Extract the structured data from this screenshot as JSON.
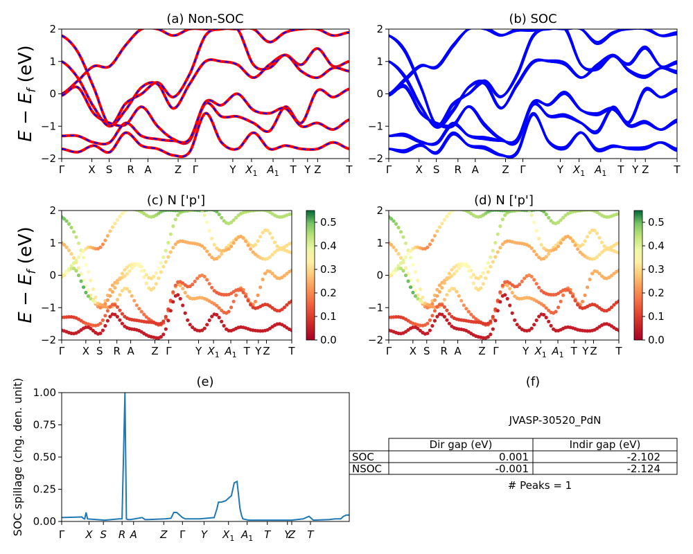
{
  "figure_id": "JVASP-30520_PdN",
  "axis_text": {
    "energy_ylabel_main": "E − E",
    "energy_ylabel_sub": "f",
    "energy_ylabel_unit": " (eV)",
    "spillage_ylabel": "SOC spillage (chg. den. unit)"
  },
  "kpath_labels": [
    {
      "text": "Γ",
      "sub": ""
    },
    {
      "text": "X",
      "sub": ""
    },
    {
      "text": "S",
      "sub": ""
    },
    {
      "text": "R",
      "sub": ""
    },
    {
      "text": "A",
      "sub": ""
    },
    {
      "text": "Z",
      "sub": ""
    },
    {
      "text": "Γ",
      "sub": ""
    },
    {
      "text": "Y",
      "sub": ""
    },
    {
      "text": "X",
      "sub": "1"
    },
    {
      "text": "A",
      "sub": "1"
    },
    {
      "text": "T",
      "sub": ""
    },
    {
      "text": "Y",
      "sub": ""
    },
    {
      "text": "Z",
      "sub": ""
    },
    {
      "text": "T",
      "sub": ""
    }
  ],
  "kpath_positions": [
    0,
    0.105,
    0.165,
    0.24,
    0.3,
    0.405,
    0.465,
    0.595,
    0.66,
    0.735,
    0.805,
    0.855,
    0.89,
    1.0
  ],
  "colors": {
    "nonsoc_band": "#ff0000",
    "nonsoc_dash": "#0000ff",
    "soc_band": "#0000ff",
    "spillage_line": "#1f77b4"
  },
  "chart_data": [
    {
      "panel": "a",
      "type": "line",
      "title": "(a) Non-SOC",
      "ylim": [
        -2,
        2
      ],
      "yticks": [
        -2,
        -1,
        0,
        1,
        2
      ],
      "bands": [
        [
          1.8,
          1.3,
          0.2,
          -0.95,
          -0.3,
          0.0,
          0.35,
          -0.1,
          0.6,
          1.8,
          2.0,
          2.0,
          2.0,
          1.6,
          1.9,
          2.0,
          2.0,
          1.8,
          1.9
        ],
        [
          1.0,
          0.5,
          -0.4,
          -1.0,
          -0.5,
          0.2,
          0.3,
          -0.45,
          0.3,
          1.0,
          1.0,
          0.9,
          0.5,
          0.9,
          1.2,
          0.9,
          1.4,
          0.85,
          1.0
        ],
        [
          0.0,
          0.4,
          0.85,
          0.85,
          1.5,
          2.0,
          2.0,
          1.8,
          2.0,
          2.0,
          2.0,
          2.0,
          0.9,
          0.8,
          1.2,
          0.7,
          0.5,
          0.8,
          0.7
        ],
        [
          -0.05,
          0.2,
          -0.6,
          -0.9,
          -0.95,
          -0.4,
          -1.0,
          -1.4,
          -1.45,
          -0.3,
          -0.7,
          -0.7,
          -0.9,
          -1.15,
          -0.4,
          -0.9,
          0.1,
          -0.1,
          0.15
        ],
        [
          -1.3,
          -1.3,
          -1.5,
          -1.5,
          -0.9,
          -1.3,
          -1.4,
          -1.45,
          -1.4,
          -0.25,
          -0.35,
          0.0,
          -0.5,
          -0.6,
          -0.45,
          -1.0,
          -0.9,
          -1.1,
          -0.8
        ],
        [
          -1.7,
          -1.8,
          -1.6,
          -1.8,
          -1.2,
          -1.6,
          -1.7,
          -1.9,
          -1.8,
          -0.6,
          -1.5,
          -1.7,
          -1.2,
          -1.7,
          -1.6,
          -1.7,
          -1.7,
          -1.5,
          -1.7
        ]
      ]
    },
    {
      "panel": "b",
      "type": "line",
      "title": "(b) SOC",
      "ylim": [
        -2,
        2
      ],
      "yticks": [
        -2,
        -1,
        0,
        1,
        2
      ],
      "bands": [
        [
          1.8,
          1.3,
          0.2,
          -0.95,
          -0.3,
          0.0,
          0.35,
          -0.1,
          0.6,
          1.8,
          2.0,
          2.0,
          2.0,
          1.6,
          1.9,
          2.0,
          2.0,
          1.8,
          1.9
        ],
        [
          1.0,
          0.5,
          -0.4,
          -1.0,
          -0.5,
          0.2,
          0.3,
          -0.45,
          0.3,
          1.0,
          1.0,
          0.9,
          0.5,
          0.9,
          1.2,
          0.9,
          1.4,
          0.85,
          1.0
        ],
        [
          0.0,
          0.4,
          0.85,
          0.85,
          1.5,
          2.0,
          2.0,
          1.8,
          2.0,
          2.0,
          2.0,
          2.0,
          0.9,
          0.8,
          1.2,
          0.7,
          0.5,
          0.8,
          0.7
        ],
        [
          -0.05,
          0.2,
          -0.6,
          -0.9,
          -0.95,
          -0.4,
          -1.0,
          -1.4,
          -1.45,
          -0.3,
          -0.7,
          -0.7,
          -0.9,
          -1.15,
          -0.4,
          -0.9,
          0.1,
          -0.1,
          0.15
        ],
        [
          -1.3,
          -1.3,
          -1.5,
          -1.5,
          -0.9,
          -1.3,
          -1.4,
          -1.45,
          -1.4,
          -0.25,
          -0.35,
          0.0,
          -0.5,
          -0.6,
          -0.45,
          -1.0,
          -0.9,
          -1.1,
          -0.8
        ],
        [
          -1.7,
          -1.8,
          -1.6,
          -1.8,
          -1.2,
          -1.6,
          -1.7,
          -1.9,
          -1.8,
          -0.6,
          -1.5,
          -1.7,
          -1.2,
          -1.7,
          -1.6,
          -1.7,
          -1.7,
          -1.5,
          -1.7
        ]
      ]
    },
    {
      "panel": "c",
      "type": "scatter",
      "title": "(c)  N ['p']",
      "ylim": [
        -2,
        2
      ],
      "yticks": [
        -2,
        -1,
        0,
        1,
        2
      ],
      "colorbar": {
        "min": 0.0,
        "max": 0.55,
        "ticks": [
          "0.0",
          "0.1",
          "0.2",
          "0.3",
          "0.4",
          "0.5"
        ]
      },
      "band_weights": [
        [
          0.5,
          0.45,
          0.35,
          0.3,
          0.25,
          0.3,
          0.35,
          0.3,
          0.4,
          0.45,
          0.5,
          0.5,
          0.5,
          0.45,
          0.45,
          0.45,
          0.45,
          0.45,
          0.45
        ],
        [
          0.25,
          0.3,
          0.35,
          0.2,
          0.25,
          0.3,
          0.35,
          0.3,
          0.3,
          0.25,
          0.25,
          0.25,
          0.25,
          0.3,
          0.3,
          0.3,
          0.3,
          0.3,
          0.3
        ],
        [
          0.35,
          0.4,
          0.3,
          0.2,
          0.3,
          0.35,
          0.45,
          0.45,
          0.5,
          0.5,
          0.45,
          0.4,
          0.3,
          0.25,
          0.25,
          0.25,
          0.3,
          0.3,
          0.3
        ],
        [
          0.3,
          0.45,
          0.5,
          0.25,
          0.25,
          0.3,
          0.2,
          0.15,
          0.15,
          0.25,
          0.25,
          0.25,
          0.2,
          0.15,
          0.2,
          0.2,
          0.25,
          0.25,
          0.25
        ],
        [
          0.12,
          0.1,
          0.15,
          0.15,
          0.15,
          0.1,
          0.1,
          0.1,
          0.1,
          0.15,
          0.15,
          0.2,
          0.15,
          0.15,
          0.15,
          0.1,
          0.1,
          0.1,
          0.1
        ],
        [
          0.05,
          0.05,
          0.05,
          0.05,
          0.05,
          0.05,
          0.05,
          0.05,
          0.05,
          0.05,
          0.05,
          0.05,
          0.05,
          0.05,
          0.05,
          0.05,
          0.05,
          0.05,
          0.05
        ]
      ]
    },
    {
      "panel": "d",
      "type": "scatter",
      "title": "(d) N ['p']",
      "ylim": [
        -2,
        2
      ],
      "yticks": [
        -2,
        -1,
        0,
        1,
        2
      ],
      "colorbar": {
        "min": 0.0,
        "max": 0.55,
        "ticks": [
          "0.0",
          "0.1",
          "0.2",
          "0.3",
          "0.4",
          "0.5"
        ]
      },
      "band_weights": [
        [
          0.5,
          0.45,
          0.35,
          0.3,
          0.25,
          0.3,
          0.35,
          0.3,
          0.4,
          0.45,
          0.5,
          0.5,
          0.5,
          0.45,
          0.45,
          0.45,
          0.45,
          0.45,
          0.45
        ],
        [
          0.25,
          0.3,
          0.35,
          0.2,
          0.25,
          0.3,
          0.35,
          0.3,
          0.3,
          0.25,
          0.25,
          0.25,
          0.25,
          0.3,
          0.3,
          0.3,
          0.3,
          0.3,
          0.3
        ],
        [
          0.35,
          0.4,
          0.3,
          0.2,
          0.3,
          0.35,
          0.45,
          0.45,
          0.5,
          0.5,
          0.45,
          0.4,
          0.3,
          0.25,
          0.25,
          0.25,
          0.3,
          0.3,
          0.3
        ],
        [
          0.3,
          0.45,
          0.5,
          0.25,
          0.25,
          0.3,
          0.2,
          0.15,
          0.15,
          0.25,
          0.25,
          0.25,
          0.2,
          0.15,
          0.2,
          0.2,
          0.25,
          0.25,
          0.25
        ],
        [
          0.12,
          0.1,
          0.15,
          0.15,
          0.15,
          0.1,
          0.1,
          0.1,
          0.1,
          0.15,
          0.15,
          0.2,
          0.15,
          0.15,
          0.15,
          0.1,
          0.1,
          0.1,
          0.1
        ],
        [
          0.05,
          0.05,
          0.05,
          0.05,
          0.05,
          0.05,
          0.05,
          0.05,
          0.05,
          0.05,
          0.05,
          0.05,
          0.05,
          0.05,
          0.05,
          0.05,
          0.05,
          0.05,
          0.05
        ]
      ]
    },
    {
      "panel": "e",
      "type": "line",
      "title": "(e)",
      "ylim": [
        0,
        1.0
      ],
      "yticks": [
        "0.00",
        "0.25",
        "0.50",
        "0.75",
        "1.00"
      ],
      "x": [
        0,
        0.07,
        0.075,
        0.08,
        0.085,
        0.09,
        0.15,
        0.2,
        0.21,
        0.22,
        0.225,
        0.23,
        0.24,
        0.28,
        0.29,
        0.3,
        0.36,
        0.38,
        0.39,
        0.4,
        0.42,
        0.43,
        0.44,
        0.48,
        0.53,
        0.54,
        0.545,
        0.555,
        0.57,
        0.59,
        0.6,
        0.61,
        0.62,
        0.625,
        0.63,
        0.65,
        0.7,
        0.8,
        0.84,
        0.86,
        0.875,
        0.93,
        0.95,
        0.97,
        0.98,
        0.99,
        1.0
      ],
      "y": [
        0.03,
        0.035,
        0.025,
        0.02,
        0.07,
        0.02,
        0.01,
        0.02,
        0.02,
        1.0,
        0.02,
        0.015,
        0.015,
        0.03,
        0.015,
        0.015,
        0.02,
        0.025,
        0.07,
        0.07,
        0.03,
        0.02,
        0.02,
        0.02,
        0.03,
        0.1,
        0.15,
        0.15,
        0.16,
        0.2,
        0.3,
        0.31,
        0.1,
        0.05,
        0.02,
        0.01,
        0.01,
        0.01,
        0.02,
        0.04,
        0.01,
        0.015,
        0.02,
        0.02,
        0.04,
        0.05,
        0.05
      ]
    },
    {
      "panel": "f",
      "type": "table",
      "title": "(f)",
      "subtitle": "JVASP-30520_PdN",
      "columns": [
        "",
        "Dir gap (eV)",
        "Indir gap (eV)"
      ],
      "rows": [
        [
          "SOC",
          "0.001",
          "-2.102"
        ],
        [
          "NSOC",
          "-0.001",
          "-2.124"
        ]
      ],
      "footer": "# Peaks = 1"
    }
  ]
}
